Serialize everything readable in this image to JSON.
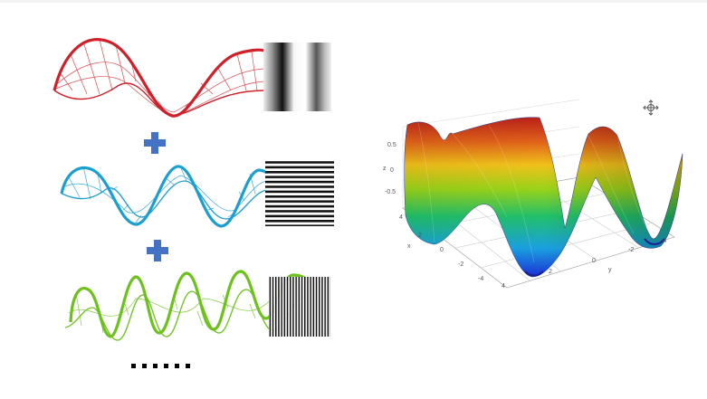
{
  "left_panel": {
    "waves": [
      {
        "name": "low-frequency",
        "color": "#d0202a"
      },
      {
        "name": "medium-frequency",
        "color": "#1a9fd0"
      },
      {
        "name": "high-frequency",
        "color": "#6cc21a"
      }
    ],
    "plus_color": "#4472c4",
    "continuation_dots": 6
  },
  "right_panel": {
    "plot": {
      "type": "surface",
      "z_ticks": [
        "0.5",
        "0",
        "-0.5"
      ],
      "z_label": "z",
      "x_ticks": [
        "4",
        "2",
        "0",
        "-2",
        "-4"
      ],
      "x_label": "x",
      "y_ticks": [
        "4",
        "2",
        "0",
        "-2",
        "-4"
      ],
      "y_label": "y",
      "colormap": [
        "#1a2fd6",
        "#1aa0e0",
        "#22c06a",
        "#9ad21a",
        "#f0c21a",
        "#e0601a",
        "#b8201a"
      ]
    }
  }
}
